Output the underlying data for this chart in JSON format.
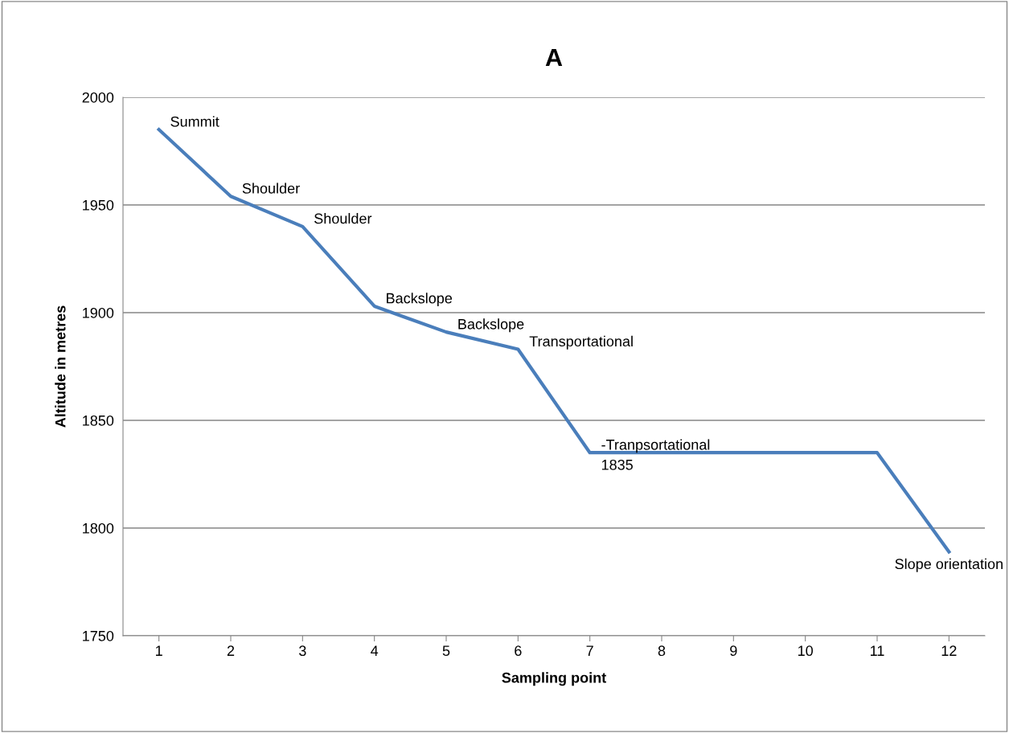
{
  "chart_data": {
    "type": "line",
    "title": "A",
    "xlabel": "Sampling point",
    "ylabel": "Altitude in metres",
    "categories": [
      "1",
      "2",
      "3",
      "4",
      "5",
      "6",
      "7",
      "8",
      "9",
      "10",
      "11",
      "12"
    ],
    "series": [
      {
        "color": "#4a7ebb",
        "values": [
          1985,
          1954,
          1940,
          1903,
          1891,
          1883,
          1835,
          1835,
          1835,
          1835,
          1835,
          1789
        ]
      }
    ],
    "ylim": [
      1750,
      2000
    ],
    "yticks": [
      1750,
      1800,
      1850,
      1900,
      1950,
      2000
    ],
    "grid": "y",
    "legend": false,
    "marker": "none",
    "line_style": "solid",
    "annotations": [
      {
        "text": "Summit",
        "x": "1",
        "y": 1985
      },
      {
        "text": "Shoulder",
        "x": "2",
        "y": 1954
      },
      {
        "text": "Shoulder",
        "x": "3",
        "y": 1940
      },
      {
        "text": "Backslope",
        "x": "4",
        "y": 1903
      },
      {
        "text": "Backslope",
        "x": "5",
        "y": 1891
      },
      {
        "text": "Transportational",
        "x": "6",
        "y": 1883
      },
      {
        "text": "-Tranpsortational",
        "x": "7",
        "y": 1835
      },
      {
        "text": "1835",
        "x": "7",
        "y": 1835
      },
      {
        "text": "Slope orientation",
        "x": "12",
        "y": 1789
      }
    ]
  }
}
